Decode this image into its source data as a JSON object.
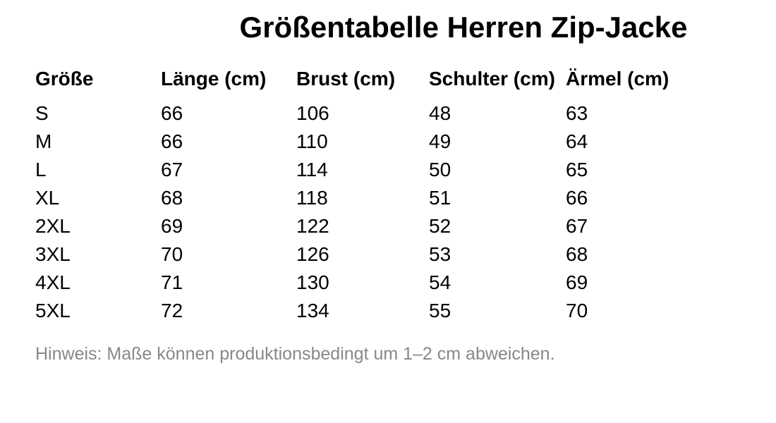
{
  "page": {
    "background_color": "#ffffff",
    "text_color": "#000000",
    "note_color": "#888888"
  },
  "chart_data": {
    "type": "table",
    "title": "Größentabelle Herren Zip-Jacke",
    "columns": [
      "Größe",
      "Länge (cm)",
      "Brust (cm)",
      "Schulter (cm)",
      "Ärmel (cm)"
    ],
    "rows": [
      [
        "S",
        66,
        106,
        48,
        63
      ],
      [
        "M",
        66,
        110,
        49,
        64
      ],
      [
        "L",
        67,
        114,
        50,
        65
      ],
      [
        "XL",
        68,
        118,
        51,
        66
      ],
      [
        "2XL",
        69,
        122,
        52,
        67
      ],
      [
        "3XL",
        70,
        126,
        53,
        68
      ],
      [
        "4XL",
        71,
        130,
        54,
        69
      ],
      [
        "5XL",
        72,
        134,
        55,
        70
      ]
    ],
    "note": "Hinweis: Maße können produktionsbedingt um 1–2 cm abweichen.",
    "layout": {
      "legend": "none",
      "grid": "off"
    }
  }
}
